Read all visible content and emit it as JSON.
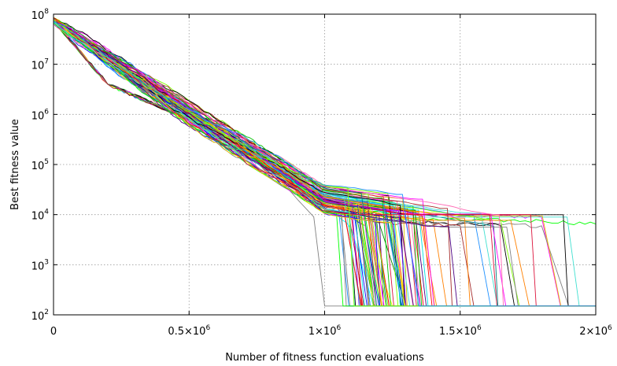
{
  "chart_data": {
    "type": "line",
    "title": "",
    "xlabel": "Number of fitness function evaluations",
    "ylabel": "Best fitness value",
    "x_scale": "linear",
    "y_scale": "log",
    "xlim": [
      0,
      2000000
    ],
    "ylim": [
      100,
      100000000
    ],
    "grid": true,
    "legend": "none",
    "x_ticks": [
      {
        "value": 0,
        "base": "0",
        "exp": ""
      },
      {
        "value": 500000,
        "base": "0.5×10",
        "exp": "6"
      },
      {
        "value": 1000000,
        "base": "1×10",
        "exp": "6"
      },
      {
        "value": 1500000,
        "base": "1.5×10",
        "exp": "6"
      },
      {
        "value": 2000000,
        "base": "2×10",
        "exp": "6"
      }
    ],
    "y_ticks": [
      {
        "value": 100,
        "base": "10",
        "exp": "2"
      },
      {
        "value": 1000,
        "base": "10",
        "exp": "3"
      },
      {
        "value": 10000,
        "base": "10",
        "exp": "4"
      },
      {
        "value": 100000,
        "base": "10",
        "exp": "5"
      },
      {
        "value": 1000000,
        "base": "10",
        "exp": "6"
      },
      {
        "value": 10000000,
        "base": "10",
        "exp": "7"
      },
      {
        "value": 100000000,
        "base": "10",
        "exp": "8"
      }
    ],
    "series_count": 100,
    "final_value": 150,
    "representative_series": [
      {
        "color": "#808080",
        "x": [
          0,
          200000,
          500000,
          800000,
          900000,
          960000,
          1000000,
          2000000
        ],
        "y": [
          75000000,
          4000000,
          800000,
          90000,
          20000,
          9000,
          150,
          150
        ]
      },
      {
        "color": "#ff0000",
        "x": [
          0,
          200000,
          500000,
          800000,
          1000000,
          1100000,
          1140000,
          2000000
        ],
        "y": [
          75000000,
          4000000,
          800000,
          90000,
          20000,
          8000,
          150,
          150
        ]
      },
      {
        "color": "#0000ff",
        "x": [
          0,
          200000,
          500000,
          800000,
          1000000,
          1150000,
          1200000,
          2000000
        ],
        "y": [
          75000000,
          4000000,
          800000,
          90000,
          20000,
          6000,
          150,
          150
        ]
      },
      {
        "color": "#00ffff",
        "x": [
          0,
          200000,
          500000,
          800000,
          1000000,
          1100000,
          1180000,
          2000000
        ],
        "y": [
          75000000,
          4000000,
          800000,
          90000,
          20000,
          5000,
          150,
          150
        ]
      },
      {
        "color": "#ffff00",
        "x": [
          0,
          200000,
          500000,
          800000,
          1000000,
          1150000,
          1250000,
          2000000
        ],
        "y": [
          75000000,
          4000000,
          800000,
          90000,
          20000,
          6000,
          150,
          150
        ]
      },
      {
        "color": "#ff8000",
        "x": [
          0,
          200000,
          500000,
          800000,
          1000000,
          1200000,
          1400000,
          1450000,
          2000000
        ],
        "y": [
          75000000,
          4000000,
          800000,
          90000,
          20000,
          9000,
          8000,
          150,
          150
        ]
      },
      {
        "color": "#008000",
        "x": [
          0,
          200000,
          500000,
          800000,
          1000000,
          1200000,
          1300000,
          2000000
        ],
        "y": [
          75000000,
          4000000,
          800000,
          90000,
          20000,
          7000,
          150,
          150
        ]
      },
      {
        "color": "#00ff00",
        "x": [
          0,
          200000,
          500000,
          800000,
          1000000,
          1300000,
          1800000,
          2000000
        ],
        "y": [
          75000000,
          4000000,
          800000,
          90000,
          20000,
          8000,
          7500,
          6500
        ]
      },
      {
        "color": "#ff00ff",
        "x": [
          0,
          200000,
          500000,
          800000,
          1000000,
          1300000,
          1800000,
          1870000,
          2000000
        ],
        "y": [
          75000000,
          4000000,
          800000,
          90000,
          20000,
          10000,
          9000,
          150,
          150
        ]
      },
      {
        "color": "#000000",
        "x": [
          0,
          200000,
          500000,
          800000,
          1000000,
          1300000,
          1650000,
          1700000,
          2000000
        ],
        "y": [
          75000000,
          4000000,
          800000,
          90000,
          20000,
          7000,
          6000,
          150,
          150
        ]
      },
      {
        "color": "#808080",
        "x": [
          0,
          200000,
          500000,
          800000,
          1000000,
          1300000,
          1800000,
          1900000,
          2000000
        ],
        "y": [
          75000000,
          4000000,
          800000,
          90000,
          20000,
          7000,
          6000,
          150,
          150
        ]
      },
      {
        "color": "#a52a2a",
        "x": [
          0,
          200000,
          500000,
          800000,
          1000000,
          1200000,
          1500000,
          1550000,
          2000000
        ],
        "y": [
          75000000,
          4000000,
          800000,
          90000,
          20000,
          7000,
          6000,
          150,
          150
        ]
      }
    ]
  }
}
